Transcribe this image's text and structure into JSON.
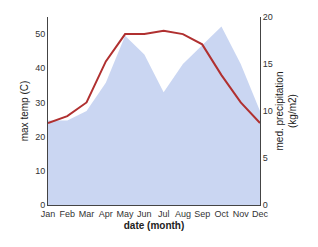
{
  "chart_data": {
    "type": "line",
    "categories": [
      "Jan",
      "Feb",
      "Mar",
      "Apr",
      "May",
      "Jun",
      "Jul",
      "Aug",
      "Sep",
      "Oct",
      "Nov",
      "Dec"
    ],
    "series": [
      {
        "type": "area",
        "axis": "y2",
        "color": "#b8c8ee",
        "values": [
          9,
          9,
          10,
          13,
          18,
          16,
          12,
          15,
          17,
          19,
          15,
          10
        ]
      },
      {
        "type": "line",
        "color": "#b03030",
        "values": [
          24,
          26,
          30,
          42,
          50,
          50,
          51,
          50,
          47,
          38,
          30,
          24
        ]
      }
    ],
    "xlabel": "date (month)",
    "ylabel": "max temp (C)",
    "y2label": "med. precipitation\n(kg/m2)",
    "ylim": [
      0,
      55
    ],
    "yticks": [
      0,
      10,
      20,
      30,
      40,
      50
    ],
    "y2lim": [
      0,
      20
    ],
    "y2ticks": [
      0,
      5,
      10,
      15,
      20
    ],
    "grid": false,
    "legend": false
  }
}
